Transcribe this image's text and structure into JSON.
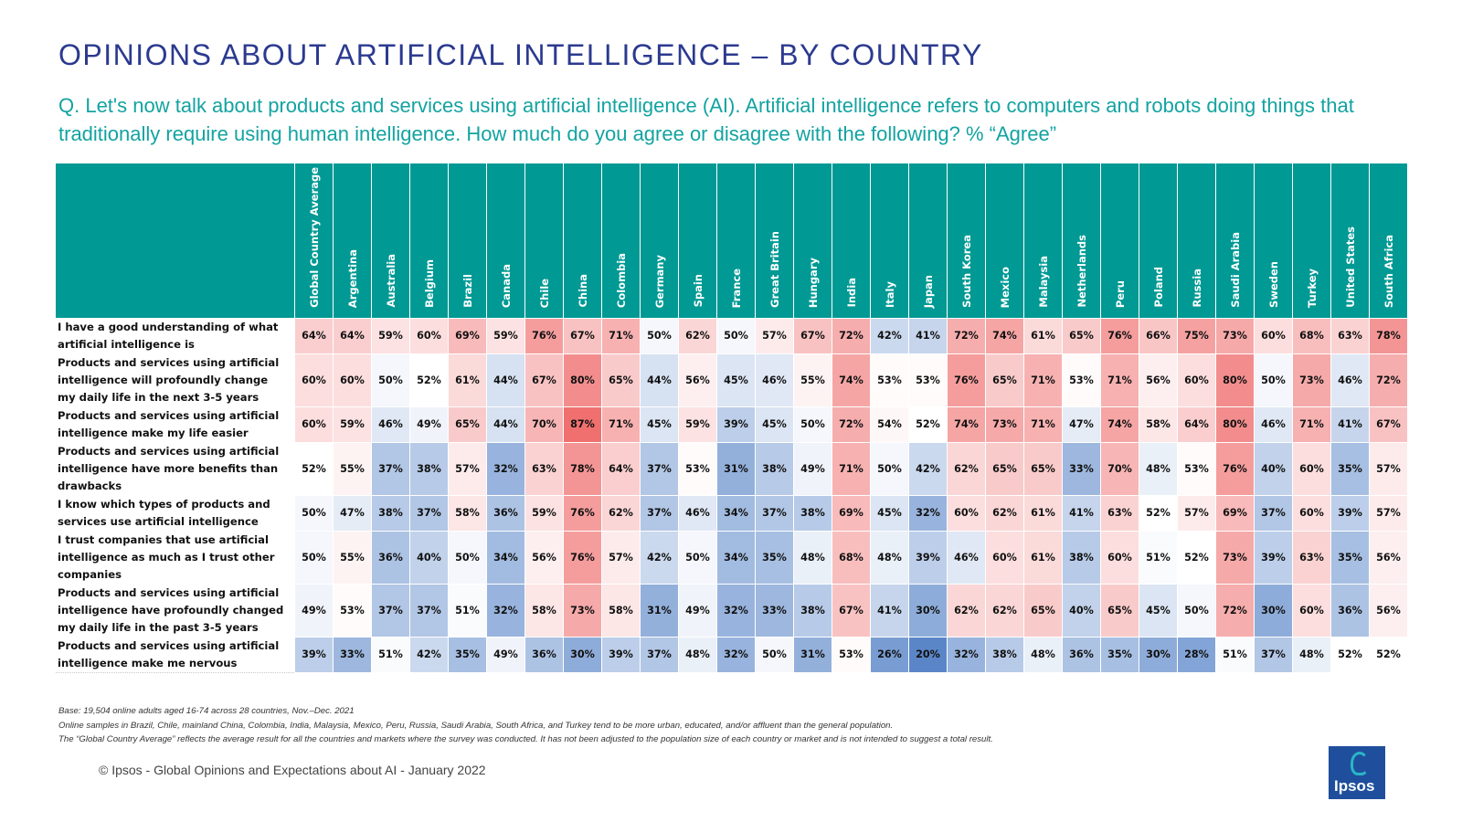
{
  "title": "OPINIONS ABOUT ARTIFICIAL INTELLIGENCE – BY COUNTRY",
  "question": "Q. Let's now talk about products and services using artificial intelligence (AI). Artificial intelligence refers to computers and robots doing things that traditionally require using human intelligence. How much do you agree or disagree with the following? % “Agree”",
  "notes": [
    "Base: 19,504 online adults aged 16-74 across 28 countries, Nov.–Dec. 2021",
    "Online samples in Brazil, Chile, mainland China, Colombia, India, Malaysia, Mexico, Peru, Russia, Saudi Arabia, South Africa, and Turkey tend to be more urban, educated, and/or affluent than the general population.",
    "The “Global  Country Average” reflects the average result for all the countries and markets where the survey was conducted. It has not been adjusted to the population size of each country or market and is not intended to suggest a total result."
  ],
  "copyright": "© Ipsos - Global Opinions and Expectations about AI - January 2022",
  "logo_text": "Ipsos",
  "colors": {
    "header_bg": "#009994",
    "high": "#f07070",
    "mid": "#ffffff",
    "low": "#5a86c8",
    "title": "#2b3a8f",
    "question": "#13a3a1"
  },
  "chart_data": {
    "type": "table",
    "unit": "%",
    "columns": [
      "Global Country Average",
      "Argentina",
      "Australia",
      "Belgium",
      "Brazil",
      "Canada",
      "Chile",
      "China",
      "Colombia",
      "Germany",
      "Spain",
      "France",
      "Great Britain",
      "Hungary",
      "India",
      "Italy",
      "Japan",
      "South Korea",
      "Mexico",
      "Malaysia",
      "Netherlands",
      "Peru",
      "Poland",
      "Russia",
      "Saudi Arabia",
      "Sweden",
      "Turkey",
      "United States",
      "South Africa"
    ],
    "rows": [
      {
        "label": "I have a good understanding of what artificial intelligence is",
        "values": [
          64,
          64,
          59,
          60,
          69,
          59,
          76,
          67,
          71,
          50,
          62,
          50,
          57,
          67,
          72,
          42,
          41,
          72,
          74,
          61,
          65,
          76,
          66,
          75,
          73,
          60,
          68,
          63,
          78
        ]
      },
      {
        "label": "Products and services using artificial intelligence will profoundly change my daily life in the next 3-5 years",
        "values": [
          60,
          60,
          50,
          52,
          61,
          44,
          67,
          80,
          65,
          44,
          56,
          45,
          46,
          55,
          74,
          53,
          53,
          76,
          65,
          71,
          53,
          71,
          56,
          60,
          80,
          50,
          73,
          46,
          72
        ]
      },
      {
        "label": "Products and services using artificial intelligence make my life easier",
        "values": [
          60,
          59,
          46,
          49,
          65,
          44,
          70,
          87,
          71,
          45,
          59,
          39,
          45,
          50,
          72,
          54,
          52,
          74,
          73,
          71,
          47,
          74,
          58,
          64,
          80,
          46,
          71,
          41,
          67
        ]
      },
      {
        "label": "Products and services using artificial intelligence have more benefits than drawbacks",
        "values": [
          52,
          55,
          37,
          38,
          57,
          32,
          63,
          78,
          64,
          37,
          53,
          31,
          38,
          49,
          71,
          50,
          42,
          62,
          65,
          65,
          33,
          70,
          48,
          53,
          76,
          40,
          60,
          35,
          57
        ]
      },
      {
        "label": "I know which types of products and services use artificial intelligence",
        "values": [
          50,
          47,
          38,
          37,
          58,
          36,
          59,
          76,
          62,
          37,
          46,
          34,
          37,
          38,
          69,
          45,
          32,
          60,
          62,
          61,
          41,
          63,
          52,
          57,
          69,
          37,
          60,
          39,
          57
        ]
      },
      {
        "label": "I trust companies that use artificial intelligence as much as I trust other companies",
        "values": [
          50,
          55,
          36,
          40,
          50,
          34,
          56,
          76,
          57,
          42,
          50,
          34,
          35,
          48,
          68,
          48,
          39,
          46,
          60,
          61,
          38,
          60,
          51,
          52,
          73,
          39,
          63,
          35,
          56
        ]
      },
      {
        "label": "Products and services using artificial intelligence have profoundly changed my daily life in the past 3-5 years",
        "values": [
          49,
          53,
          37,
          37,
          51,
          32,
          58,
          73,
          58,
          31,
          49,
          32,
          33,
          38,
          67,
          41,
          30,
          62,
          62,
          65,
          40,
          65,
          45,
          50,
          72,
          30,
          60,
          36,
          56
        ]
      },
      {
        "label": "Products and services using artificial intelligence make me nervous",
        "values": [
          39,
          33,
          51,
          42,
          35,
          49,
          36,
          30,
          39,
          37,
          48,
          32,
          50,
          31,
          53,
          26,
          20,
          32,
          38,
          48,
          36,
          35,
          30,
          28,
          51,
          37,
          48,
          52,
          52
        ]
      }
    ]
  }
}
